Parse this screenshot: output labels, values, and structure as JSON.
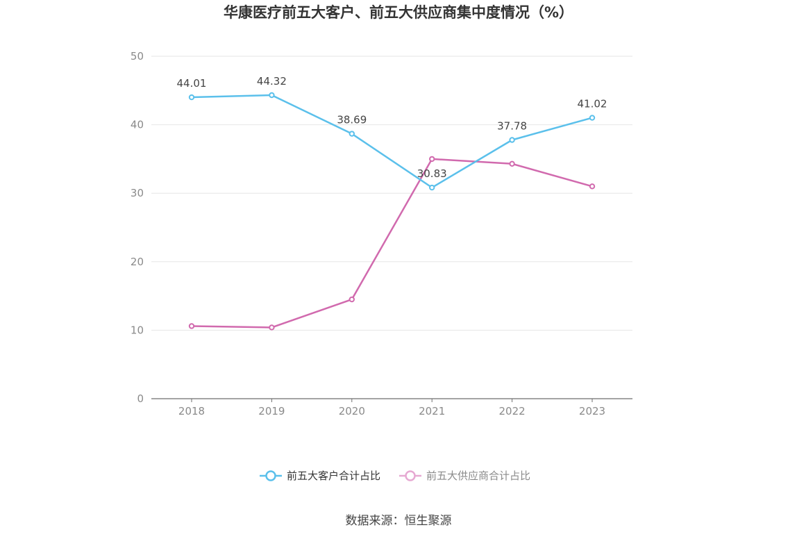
{
  "chart_data": {
    "type": "line",
    "title": "华康医疗前五大客户、前五大供应商集中度情况（%）",
    "categories": [
      "2018",
      "2019",
      "2020",
      "2021",
      "2022",
      "2023"
    ],
    "ylim": [
      0,
      50
    ],
    "yticks": [
      "0",
      "10",
      "20",
      "30",
      "40",
      "50"
    ],
    "grid": true,
    "legend_position": "bottom",
    "series": [
      {
        "name": "前五大客户合计占比",
        "color": "#5bc0eb",
        "values": [
          44.01,
          44.32,
          38.69,
          30.83,
          37.78,
          41.02
        ],
        "labels": [
          "44.01",
          "44.32",
          "38.69",
          "30.83",
          "37.78",
          "41.02"
        ]
      },
      {
        "name": "前五大供应商合计占比",
        "color": "#d16aae",
        "legend_color": "#e6a9d2",
        "values": [
          10.6,
          10.4,
          14.5,
          35.0,
          34.3,
          31.0
        ]
      }
    ],
    "source": "数据来源：恒生聚源"
  }
}
